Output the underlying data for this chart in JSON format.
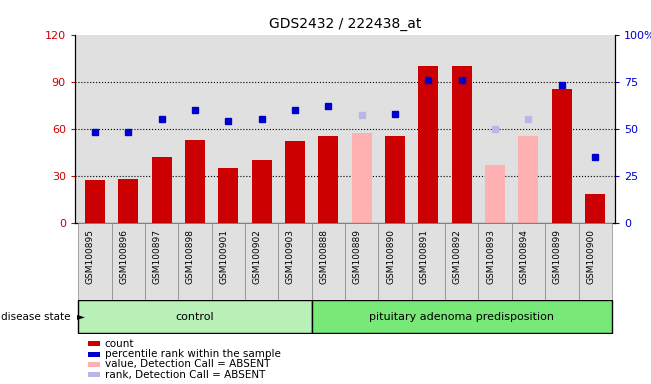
{
  "title": "GDS2432 / 222438_at",
  "samples": [
    "GSM100895",
    "GSM100896",
    "GSM100897",
    "GSM100898",
    "GSM100901",
    "GSM100902",
    "GSM100903",
    "GSM100888",
    "GSM100889",
    "GSM100890",
    "GSM100891",
    "GSM100892",
    "GSM100893",
    "GSM100894",
    "GSM100899",
    "GSM100900"
  ],
  "bar_values": [
    27,
    28,
    42,
    53,
    35,
    40,
    52,
    55,
    null,
    55,
    100,
    100,
    null,
    null,
    85,
    18
  ],
  "bar_absent": [
    null,
    null,
    null,
    null,
    null,
    null,
    null,
    null,
    57,
    null,
    null,
    null,
    37,
    55,
    null,
    null
  ],
  "rank_values": [
    48,
    48,
    55,
    60,
    54,
    55,
    60,
    62,
    57,
    58,
    76,
    76,
    50,
    55,
    73,
    35
  ],
  "rank_absent_flags": [
    false,
    false,
    false,
    false,
    false,
    false,
    false,
    false,
    true,
    false,
    false,
    false,
    true,
    true,
    false,
    false
  ],
  "control_count": 7,
  "disease_count": 9,
  "control_label": "control",
  "disease_label": "pituitary adenoma predisposition",
  "disease_state_label": "disease state",
  "ylim_left": [
    0,
    120
  ],
  "ylim_right": [
    0,
    100
  ],
  "yticks_left": [
    0,
    30,
    60,
    90,
    120
  ],
  "yticks_right": [
    0,
    25,
    50,
    75,
    100
  ],
  "ytick_labels_left": [
    "0",
    "30",
    "60",
    "90",
    "120"
  ],
  "ytick_labels_right": [
    "0",
    "25",
    "50",
    "75",
    "100%"
  ],
  "legend_items": [
    {
      "label": "count",
      "color": "#cc0000"
    },
    {
      "label": "percentile rank within the sample",
      "color": "#0000cc"
    },
    {
      "label": "value, Detection Call = ABSENT",
      "color": "#ffb0b0"
    },
    {
      "label": "rank, Detection Call = ABSENT",
      "color": "#b8b8e8"
    }
  ],
  "bg_color": "#e0e0e0",
  "control_bg": "#b8f0b8",
  "disease_bg": "#78e878",
  "bar_color": "#cc0000",
  "absent_bar_color": "#ffb0b0",
  "rank_color": "#0000cc",
  "rank_absent_color": "#b8b8e8"
}
